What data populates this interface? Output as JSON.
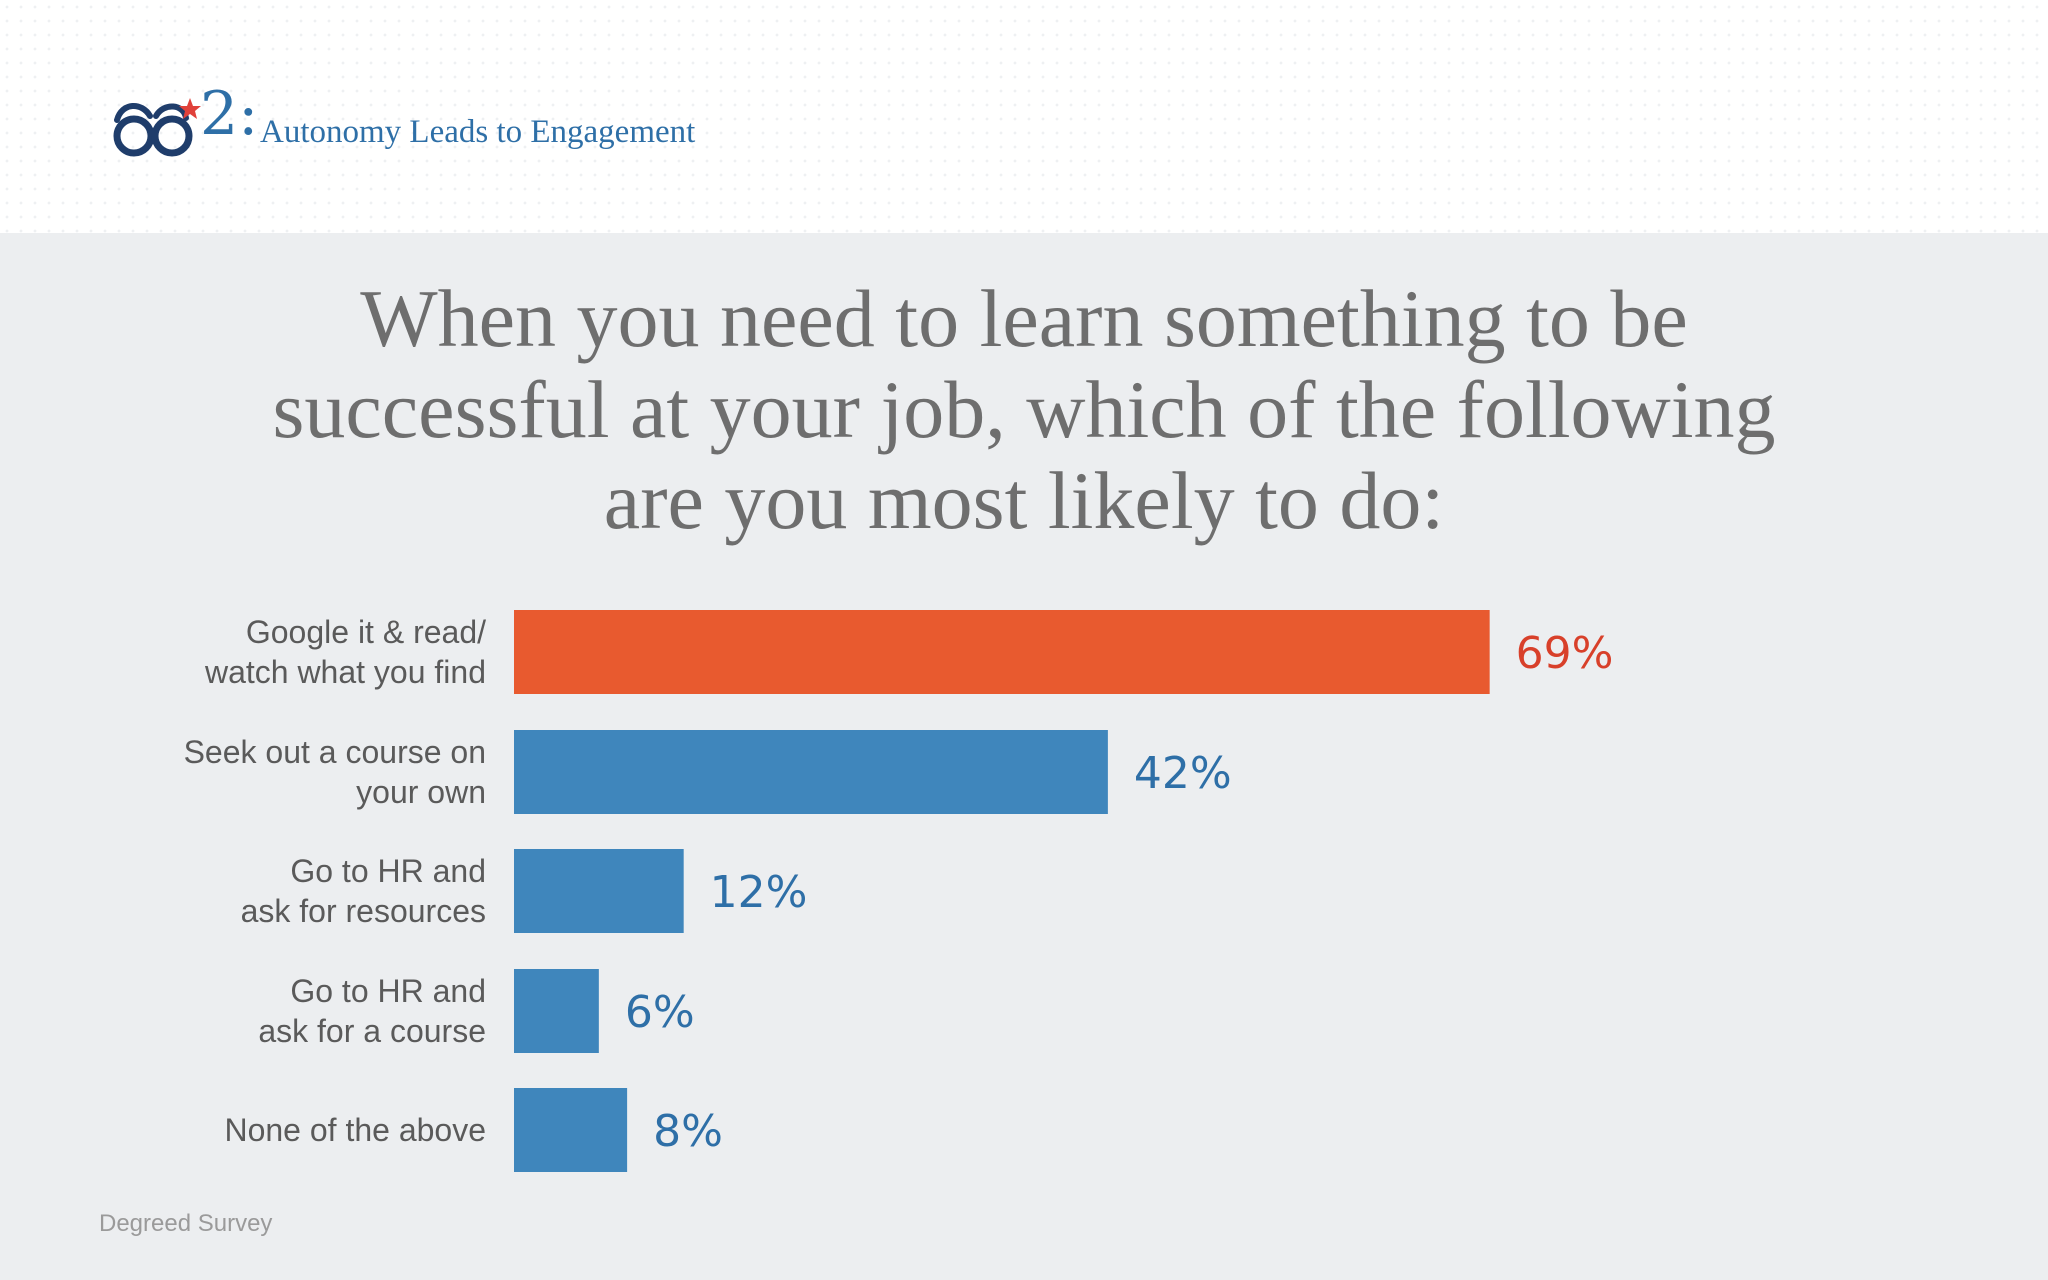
{
  "header": {
    "section_number": "2:",
    "section_title": "Autonomy Leads to Engagement",
    "logo_icon": "glasses-logo-icon"
  },
  "chart_data": {
    "type": "bar",
    "orientation": "horizontal",
    "title_lines": [
      "When you need to learn something to be",
      "successful at your job, which of the following",
      "are you most likely to do:"
    ],
    "categories": [
      [
        "Google it & read/",
        "watch what you find"
      ],
      [
        "Seek out a course on",
        "your own"
      ],
      [
        "Go to HR and",
        "ask for resources"
      ],
      [
        "Go to HR and",
        "ask for a course"
      ],
      [
        "None of the above"
      ]
    ],
    "values": [
      69,
      42,
      12,
      6,
      8
    ],
    "value_labels": [
      "69%",
      "42%",
      "12%",
      "6%",
      "8%"
    ],
    "xlim": [
      0,
      100
    ],
    "grid": false,
    "colors": [
      "#e85a2f",
      "#3f86bc",
      "#3f86bc",
      "#3f86bc",
      "#3f86bc"
    ],
    "label_colors": [
      "#d8402a",
      "#2e6fa7",
      "#2e6fa7",
      "#2e6fa7",
      "#2e6fa7"
    ]
  },
  "footer": {
    "source": "Degreed Survey"
  }
}
